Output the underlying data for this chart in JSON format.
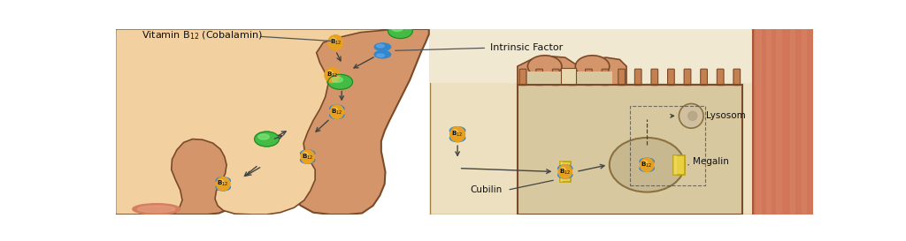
{
  "bg_color": "#ffffff",
  "stomach_color": "#D4956A",
  "stomach_outline": "#7B4A28",
  "stomach_inner": "#E8B080",
  "right_panel_bg": "#EDE0C0",
  "right_panel_border": "#A08040",
  "skin_color": "#CC7055",
  "skin_highlight": "#E09070",
  "b12_orange": "#E8A020",
  "b12_highlight": "#F8D060",
  "green_protein": "#44BB44",
  "green_highlight": "#88EE88",
  "blue_if": "#3388CC",
  "blue_if_light": "#66AAEE",
  "yellow_receptor": "#E8D040",
  "yellow_receptor_dark": "#C0A010",
  "lysosom_bg": "#D0C0A0",
  "lysosom_inner": "#B8A888",
  "nucleus_bg": "#C8B890",
  "nucleus_border": "#8B7040",
  "cell_bg": "#D8C8A0",
  "cell_border": "#7B4A28",
  "microvilli_color": "#C48050",
  "arrow_color": "#444444",
  "dashed_color": "#444444",
  "label_color": "#111111",
  "vitamin_label": "Vitamin B",
  "intrinsic_label": "Intrinsic Factor",
  "lysosom_label": "Lysosom",
  "megalin_label": "Megalin",
  "cubilin_label": "Cubilin"
}
